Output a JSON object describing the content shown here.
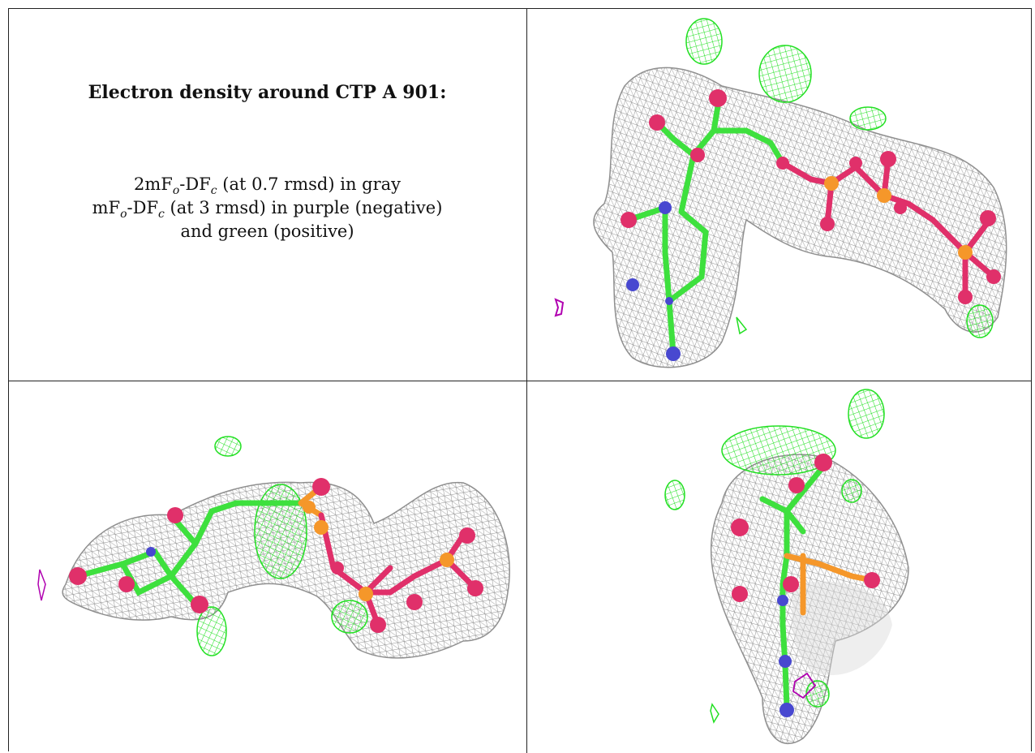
{
  "caption": {
    "title": "Electron density around CTP A 901:",
    "line1": {
      "pre": "2mF",
      "sub1": "o",
      "mid": "-DF",
      "sub2": "c",
      "post": " (at 0.7 rmsd) in gray"
    },
    "line2": {
      "pre": "mF",
      "sub1": "o",
      "mid": "-DF",
      "sub2": "c",
      "post": " (at 3 rmsd) in purple (negative)"
    },
    "line3": "and green (positive)"
  },
  "colors": {
    "mesh_2fofc": "#8f8f8f",
    "mesh_positive": "#22e022",
    "mesh_negative": "#b000b0",
    "carbon": "#3ee03e",
    "oxygen": "#e0306a",
    "nitrogen": "#4848d0",
    "phosphorus": "#f5972a"
  },
  "views": [
    {
      "id": "view-1",
      "icon": "density-view-1"
    },
    {
      "id": "view-2",
      "icon": "density-view-2"
    },
    {
      "id": "view-3",
      "icon": "density-view-3"
    }
  ]
}
